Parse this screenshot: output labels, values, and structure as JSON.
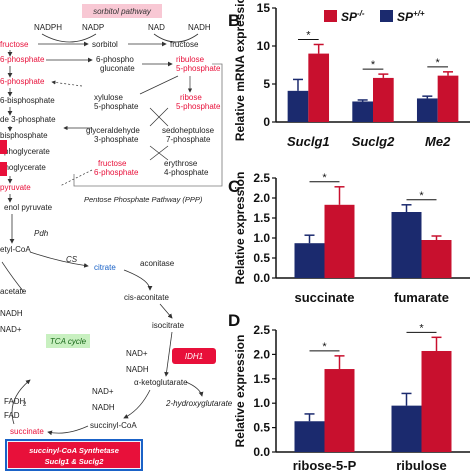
{
  "colors": {
    "sp_ko": "#c8102e",
    "sp_wt": "#1b2a6e",
    "met_red": "#e8103a",
    "met_blue": "#1a62c7",
    "box_pink": "#f8c8d4",
    "tca_green": "#c8f0c0"
  },
  "pathway": {
    "nadph": "NADPH",
    "nadp": "NADP",
    "nad": "NAD",
    "nadh": "NADH",
    "sorbitol_pathway": "sorbitol pathway",
    "fructose_top": "fructose",
    "sorbitol": "sorbitol",
    "fructose": "fructose",
    "g6p": "6-phosphate",
    "f6p_left": "6-phosphate",
    "f16bp": "6-bisphosphate",
    "g3p_left": "de 3-phosphate",
    "bpg": "bisphosphate",
    "pg3": "sphoglycerate",
    "pg2": "phoglycerate",
    "pep": "pyruvate",
    "pyr": "pyruvate",
    "sixpg_a": "6-phospho",
    "sixpg_b": "gluconate",
    "ribulose_a": "ribulose",
    "ribulose_b": "5-phosphate",
    "xylulose_a": "xylulose",
    "xylulose_b": "5-phosphate",
    "ribose_a": "ribose",
    "ribose_b": "5-phosphate",
    "ga3p_a": "glyceraldehyde",
    "ga3p_b": "3-phosphate",
    "s7p_a": "sedoheptulose",
    "s7p_b": "7-phosphate",
    "fructose6p_a": "fructose",
    "fructose6p_b": "6-phosphate",
    "e4p_a": "erythrose",
    "e4p_b": "4-phosphate",
    "ppp_label": "Pentose Phosphate Pathway (PPP)",
    "enol_pyruvate": "enol pyruvate",
    "pdh": "Pdh",
    "acetyl_coa": "etyl-CoA",
    "cs": "CS",
    "citrate": "citrate",
    "aconitase": "aconitase",
    "cis_aconitate": "cis-aconitate",
    "isocitrate": "isocitrate",
    "tca_cycle": "TCA cycle",
    "nad_plus_1": "NAD+",
    "nadh_1": "NADH",
    "idh1": "IDH1",
    "alpha_kg": "α-ketoglutarate",
    "two_hg": "2-hydroxyglutarate",
    "nad_plus_2": "NAD+",
    "nadh_2": "NADH",
    "succinyl_coa": "succinyl-CoA",
    "succinate": "succinate",
    "acetate": "acetate",
    "nadh_left": "NADH",
    "nad_plus_left": "NAD+",
    "fadh2": "FADH",
    "fadh2_sub": "2",
    "fad": "FAD",
    "synthetase_a": "succinyl-CoA Synthetase",
    "synthetase_b": "Suclg1 & Suclg2"
  },
  "legend": {
    "ko": "SP",
    "ko_sup": "-/-",
    "wt": "SP",
    "wt_sup": "+/+"
  },
  "chart_data": [
    {
      "type": "bar",
      "panel": "B",
      "categories": [
        "Suclg1",
        "Suclg2",
        "Me2"
      ],
      "series": [
        {
          "name": "SP+/+",
          "values": [
            4.1,
            2.7,
            3.1
          ],
          "errors": [
            1.5,
            0.2,
            0.3
          ]
        },
        {
          "name": "SP-/-",
          "values": [
            9.0,
            5.8,
            6.1
          ],
          "errors": [
            1.2,
            0.5,
            0.5
          ]
        }
      ],
      "ylabel": "Relative mRNA expression",
      "ylim": [
        0,
        15
      ],
      "yticks": [
        0,
        5,
        10,
        15
      ],
      "significance": [
        "*",
        "*",
        "*"
      ]
    },
    {
      "type": "bar",
      "panel": "C",
      "categories": [
        "succinate",
        "fumarate"
      ],
      "series": [
        {
          "name": "SP+/+",
          "values": [
            0.87,
            1.65
          ],
          "errors": [
            0.2,
            0.18
          ]
        },
        {
          "name": "SP-/-",
          "values": [
            1.83,
            0.95
          ],
          "errors": [
            0.45,
            0.1
          ]
        }
      ],
      "ylabel": "Relative expression",
      "ylim": [
        0,
        2.5
      ],
      "yticks": [
        "0.0",
        "0.5",
        "1.0",
        "1.5",
        "2.0",
        "2.5"
      ],
      "significance": [
        "*",
        "*"
      ]
    },
    {
      "type": "bar",
      "panel": "D",
      "categories": [
        "ribose-5-P",
        "ribulose"
      ],
      "series": [
        {
          "name": "SP+/+",
          "values": [
            0.63,
            0.95
          ],
          "errors": [
            0.15,
            0.25
          ]
        },
        {
          "name": "SP-/-",
          "values": [
            1.7,
            2.07
          ],
          "errors": [
            0.27,
            0.28
          ]
        }
      ],
      "ylabel": "Relative expression",
      "ylim": [
        0,
        2.5
      ],
      "yticks": [
        "0.0",
        "0.5",
        "1.0",
        "1.5",
        "2.0",
        "2.5"
      ],
      "significance": [
        "*",
        "*"
      ]
    }
  ],
  "panel_letters": {
    "b": "B",
    "c": "C",
    "d": "D"
  }
}
